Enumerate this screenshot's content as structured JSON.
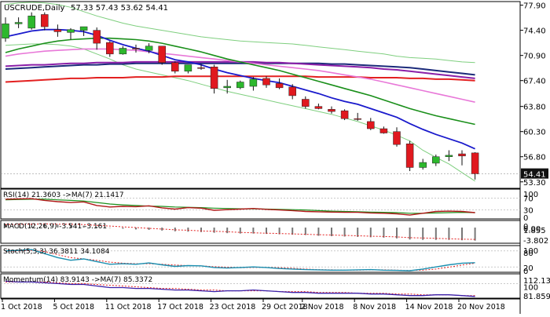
{
  "header": {
    "symbol": "USCRUDE,Daily",
    "ohlc": "57.33 57.43 53.62 54.41"
  },
  "chart_data": {
    "type": "candlestick",
    "colors": {
      "up_body": "#2db82d",
      "down_body": "#e0191f",
      "wick": "#111111",
      "ma_blue": "#1a1acc",
      "ma_green": "#1a8f1a",
      "ma_pink": "#e878d8",
      "ma_red": "#e32020",
      "ma_navy": "#1b2a7a",
      "ma_purple": "#8b1fa8",
      "bollinger": "#7fcf7f",
      "price_tag_bg": "#111111",
      "price_tag_text": "#ffffff"
    },
    "price_axis": {
      "ticks": [
        "77.90",
        "74.40",
        "70.90",
        "67.40",
        "63.80",
        "60.30",
        "56.80",
        "53.30"
      ],
      "range": [
        52.4,
        78.4
      ],
      "current": "54.41"
    },
    "dates": [
      "1 Oct 2018",
      "5 Oct 2018",
      "11 Oct 2018",
      "17 Oct 2018",
      "23 Oct 2018",
      "29 Oct 2018",
      "2 Nov 2018",
      "8 Nov 2018",
      "14 Nov 2018",
      "20 Nov 2018"
    ],
    "candles": [
      {
        "o": 73.3,
        "h": 76.2,
        "l": 72.8,
        "c": 75.3
      },
      {
        "o": 75.3,
        "h": 76.2,
        "l": 74.7,
        "c": 75.5
      },
      {
        "o": 74.7,
        "h": 76.9,
        "l": 74.5,
        "c": 76.4
      },
      {
        "o": 76.6,
        "h": 76.9,
        "l": 74.4,
        "c": 74.9
      },
      {
        "o": 74.5,
        "h": 75.2,
        "l": 73.5,
        "c": 74.2
      },
      {
        "o": 74.1,
        "h": 74.7,
        "l": 73.1,
        "c": 74.5
      },
      {
        "o": 74.4,
        "h": 74.9,
        "l": 73.6,
        "c": 74.9
      },
      {
        "o": 74.4,
        "h": 74.8,
        "l": 71.7,
        "c": 72.6
      },
      {
        "o": 72.7,
        "h": 72.9,
        "l": 70.7,
        "c": 71.1
      },
      {
        "o": 71.1,
        "h": 72.2,
        "l": 71.0,
        "c": 71.9
      },
      {
        "o": 71.9,
        "h": 72.4,
        "l": 71.3,
        "c": 71.8
      },
      {
        "o": 71.6,
        "h": 72.6,
        "l": 71.2,
        "c": 72.2
      },
      {
        "o": 72.2,
        "h": 72.2,
        "l": 69.6,
        "c": 69.9
      },
      {
        "o": 69.9,
        "h": 70.1,
        "l": 68.4,
        "c": 68.7
      },
      {
        "o": 68.7,
        "h": 69.6,
        "l": 68.4,
        "c": 69.6
      },
      {
        "o": 69.2,
        "h": 69.7,
        "l": 68.9,
        "c": 69.1
      },
      {
        "o": 69.3,
        "h": 69.6,
        "l": 65.6,
        "c": 66.3
      },
      {
        "o": 66.4,
        "h": 67.5,
        "l": 65.6,
        "c": 66.6
      },
      {
        "o": 66.4,
        "h": 67.4,
        "l": 66.2,
        "c": 67.2
      },
      {
        "o": 66.6,
        "h": 67.9,
        "l": 66.0,
        "c": 67.6
      },
      {
        "o": 67.7,
        "h": 68.0,
        "l": 66.4,
        "c": 66.8
      },
      {
        "o": 67.0,
        "h": 67.7,
        "l": 66.2,
        "c": 66.4
      },
      {
        "o": 66.5,
        "h": 66.9,
        "l": 64.8,
        "c": 65.3
      },
      {
        "o": 64.8,
        "h": 65.2,
        "l": 63.5,
        "c": 63.8
      },
      {
        "o": 63.8,
        "h": 64.2,
        "l": 63.4,
        "c": 63.5
      },
      {
        "o": 63.4,
        "h": 63.8,
        "l": 62.8,
        "c": 63.1
      },
      {
        "o": 63.2,
        "h": 63.4,
        "l": 61.9,
        "c": 62.1
      },
      {
        "o": 62.1,
        "h": 62.9,
        "l": 61.8,
        "c": 62.0
      },
      {
        "o": 61.7,
        "h": 62.2,
        "l": 60.5,
        "c": 60.7
      },
      {
        "o": 60.7,
        "h": 61.0,
        "l": 60.0,
        "c": 60.1
      },
      {
        "o": 60.3,
        "h": 60.9,
        "l": 58.2,
        "c": 58.5
      },
      {
        "o": 58.6,
        "h": 59.0,
        "l": 54.8,
        "c": 55.3
      },
      {
        "o": 55.3,
        "h": 56.5,
        "l": 55.0,
        "c": 56.0
      },
      {
        "o": 55.9,
        "h": 57.1,
        "l": 55.5,
        "c": 56.8
      },
      {
        "o": 56.8,
        "h": 57.7,
        "l": 56.2,
        "c": 57.0
      },
      {
        "o": 57.2,
        "h": 57.7,
        "l": 55.6,
        "c": 56.9
      },
      {
        "o": 57.33,
        "h": 57.43,
        "l": 53.62,
        "c": 54.41
      }
    ],
    "moving_averages": {
      "blue": [
        73.5,
        73.9,
        74.3,
        74.5,
        74.5,
        74.4,
        74.2,
        73.7,
        73.0,
        72.4,
        71.9,
        71.5,
        70.9,
        70.3,
        70.0,
        69.6,
        69.0,
        68.5,
        68.1,
        67.7,
        67.4,
        67.1,
        66.6,
        66.1,
        65.6,
        65.0,
        64.5,
        64.1,
        63.5,
        62.9,
        62.3,
        61.4,
        60.6,
        59.9,
        59.3,
        58.7,
        57.9
      ],
      "green": [
        71.3,
        71.8,
        72.2,
        72.6,
        72.9,
        73.1,
        73.2,
        73.3,
        73.3,
        73.2,
        73.1,
        72.9,
        72.6,
        72.2,
        71.8,
        71.4,
        70.9,
        70.4,
        70.0,
        69.6,
        69.2,
        68.8,
        68.3,
        67.8,
        67.3,
        66.8,
        66.3,
        65.8,
        65.3,
        64.7,
        64.1,
        63.5,
        63.0,
        62.5,
        62.1,
        61.7,
        61.3
      ],
      "pink": [
        70.8,
        71.1,
        71.3,
        71.5,
        71.6,
        71.7,
        71.8,
        71.8,
        71.8,
        71.7,
        71.6,
        71.4,
        71.2,
        71.0,
        70.8,
        70.6,
        70.4,
        70.2,
        70.0,
        69.8,
        69.6,
        69.4,
        69.2,
        69.0,
        68.8,
        68.5,
        68.2,
        67.9,
        67.6,
        67.2,
        66.8,
        66.4,
        66.0,
        65.6,
        65.2,
        64.8,
        64.4
      ],
      "red": [
        67.2,
        67.3,
        67.4,
        67.5,
        67.6,
        67.7,
        67.7,
        67.8,
        67.8,
        67.8,
        67.9,
        67.9,
        67.9,
        68.0,
        68.0,
        68.0,
        68.0,
        68.0,
        68.0,
        68.0,
        68.0,
        68.0,
        68.0,
        68.0,
        67.9,
        67.9,
        67.9,
        67.9,
        67.8,
        67.8,
        67.8,
        67.7,
        67.7,
        67.6,
        67.6,
        67.5,
        67.4
      ],
      "navy": [
        69.0,
        69.1,
        69.2,
        69.3,
        69.4,
        69.5,
        69.6,
        69.6,
        69.7,
        69.7,
        69.8,
        69.8,
        69.8,
        69.8,
        69.8,
        69.8,
        69.8,
        69.8,
        69.8,
        69.8,
        69.8,
        69.8,
        69.8,
        69.8,
        69.8,
        69.7,
        69.7,
        69.6,
        69.5,
        69.4,
        69.3,
        69.2,
        69.0,
        68.8,
        68.6,
        68.4,
        68.2
      ],
      "purple": [
        69.4,
        69.5,
        69.6,
        69.6,
        69.7,
        69.8,
        69.8,
        69.9,
        69.9,
        69.9,
        70.0,
        70.0,
        70.0,
        70.0,
        70.0,
        70.0,
        70.0,
        70.0,
        70.0,
        70.0,
        69.9,
        69.9,
        69.8,
        69.7,
        69.6,
        69.5,
        69.4,
        69.3,
        69.2,
        69.0,
        68.9,
        68.7,
        68.5,
        68.3,
        68.1,
        67.9,
        67.7
      ]
    },
    "bollinger_upper": [
      78.0,
      78.2,
      78.3,
      78.2,
      78.0,
      77.6,
      77.0,
      76.4,
      75.9,
      75.4,
      75.0,
      74.7,
      74.4,
      74.1,
      73.8,
      73.5,
      73.3,
      73.1,
      72.9,
      72.8,
      72.7,
      72.6,
      72.5,
      72.3,
      72.1,
      71.9,
      71.7,
      71.5,
      71.3,
      71.1,
      70.8,
      70.6,
      70.5,
      70.4,
      70.2,
      70.0,
      69.9
    ],
    "bollinger_lower": [
      72.3,
      72.4,
      72.5,
      72.5,
      72.4,
      72.2,
      71.8,
      71.1,
      70.4,
      69.6,
      69.0,
      68.6,
      68.2,
      67.8,
      67.4,
      66.9,
      66.4,
      65.9,
      65.5,
      65.1,
      64.7,
      64.3,
      63.9,
      63.5,
      63.1,
      62.7,
      62.2,
      61.7,
      61.1,
      60.5,
      59.8,
      59.0,
      57.7,
      56.7,
      55.8,
      54.6,
      53.4
    ],
    "indicators": {
      "rsi": {
        "label": "RSI(14) 21.3603 ->MA(7) 21.1417",
        "ticks": [
          "100",
          "70",
          "30",
          "0"
        ],
        "values": [
          66,
          67,
          68,
          62,
          58,
          55,
          57,
          45,
          40,
          42,
          41,
          44,
          37,
          33,
          38,
          36,
          29,
          31,
          33,
          35,
          32,
          30,
          28,
          25,
          24,
          23,
          22,
          22,
          20,
          19,
          17,
          13,
          19,
          25,
          26,
          25,
          21
        ],
        "ma": [
          64,
          65,
          66,
          66,
          64,
          62,
          60,
          55,
          50,
          47,
          45,
          43,
          42,
          40,
          39,
          38,
          36,
          35,
          34,
          34,
          33,
          32,
          31,
          30,
          28,
          26,
          25,
          24,
          23,
          22,
          21,
          19,
          19,
          20,
          21,
          22,
          21
        ]
      },
      "macd": {
        "label": "MACD(12,26,9) -3.541 -3.161",
        "ticks": [
          "0",
          "1.855",
          "0.00",
          "-3.802"
        ],
        "values": [
          0.9,
          1.0,
          1.1,
          1.0,
          0.8,
          0.7,
          0.5,
          0.2,
          -0.1,
          -0.3,
          -0.5,
          -0.6,
          -0.8,
          -1.0,
          -1.1,
          -1.2,
          -1.4,
          -1.5,
          -1.6,
          -1.6,
          -1.7,
          -1.8,
          -1.9,
          -2.0,
          -2.2,
          -2.3,
          -2.4,
          -2.5,
          -2.6,
          -2.7,
          -2.9,
          -3.2,
          -3.3,
          -3.3,
          -3.3,
          -3.4,
          -3.5
        ],
        "signal": [
          0.8,
          0.9,
          0.9,
          1.0,
          0.9,
          0.9,
          0.8,
          0.6,
          0.4,
          0.2,
          0.0,
          -0.2,
          -0.4,
          -0.6,
          -0.7,
          -0.9,
          -1.0,
          -1.1,
          -1.3,
          -1.4,
          -1.5,
          -1.6,
          -1.7,
          -1.8,
          -1.9,
          -2.0,
          -2.1,
          -2.2,
          -2.3,
          -2.4,
          -2.5,
          -2.7,
          -2.8,
          -2.9,
          -3.0,
          -3.1,
          -3.16
        ],
        "range": [
          -4.2,
          1.9
        ]
      },
      "stoch": {
        "label": "Stoch(5,3,3) 36.3811 34.1084",
        "ticks": [
          "100",
          "80",
          "20",
          "0"
        ],
        "k": [
          80,
          82,
          85,
          70,
          55,
          45,
          50,
          40,
          30,
          32,
          30,
          35,
          28,
          22,
          25,
          24,
          18,
          16,
          18,
          20,
          18,
          14,
          12,
          10,
          9,
          8,
          8,
          9,
          10,
          8,
          7,
          6,
          12,
          20,
          28,
          34,
          36
        ],
        "d": [
          78,
          80,
          82,
          78,
          66,
          55,
          50,
          45,
          38,
          34,
          32,
          32,
          30,
          27,
          25,
          24,
          21,
          19,
          17,
          18,
          18,
          17,
          15,
          12,
          10,
          9,
          8,
          8,
          9,
          9,
          8,
          7,
          8,
          12,
          19,
          27,
          34
        ]
      },
      "momentum": {
        "label": "Momentum(14) 83.9143 ->MA(7) 85.3372",
        "ticks": [
          "112.133",
          "100",
          "81.8593"
        ],
        "values": [
          103,
          102,
          102,
          101,
          100,
          99,
          99,
          97,
          95,
          95,
          94,
          94,
          93,
          92,
          92,
          91,
          90,
          91,
          91,
          92,
          91,
          90,
          89,
          89,
          88,
          88,
          88,
          88,
          87,
          87,
          86,
          85,
          85,
          86,
          86,
          85,
          84
        ],
        "ma": [
          102,
          102,
          102,
          102,
          101,
          100,
          100,
          99,
          98,
          97,
          96,
          95,
          94,
          94,
          93,
          92,
          92,
          91,
          91,
          91,
          91,
          90,
          90,
          90,
          89,
          89,
          89,
          88,
          88,
          88,
          87,
          87,
          86,
          86,
          86,
          85,
          85
        ],
        "range": [
          81.8,
          112.2
        ]
      }
    }
  }
}
